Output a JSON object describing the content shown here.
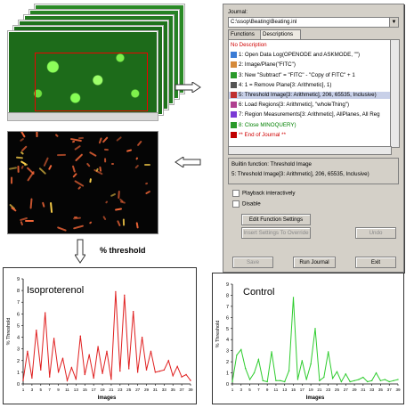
{
  "threshold_caption": "% threshold",
  "journal": {
    "label": "Journal:",
    "path": "C:\\ssop\\Beating\\Beating.inl",
    "tabs": [
      "Functions",
      "Descriptions"
    ],
    "items": [
      {
        "text": "No Description",
        "color": "#d00000",
        "icon": "none"
      },
      {
        "text": "1: Open Data Log(OPENODE and ASKMODE, \"\")",
        "color": "#000000",
        "icon": "log-icon"
      },
      {
        "text": "2: Image/Plane(\"FITC\")",
        "color": "#000000",
        "icon": "image-icon"
      },
      {
        "text": "3: New \"Subtract\" = \"FITC\" - \"Copy of FITC\" + 1",
        "color": "#000000",
        "icon": "subtract-icon"
      },
      {
        "text": "4: 1 = Remove Plane[3: Arithmetic], 1)",
        "color": "#000000",
        "icon": "remove-icon"
      },
      {
        "text": "5: Threshold Image[3: Arithmetic], 206, 65535, Inclusive)",
        "color": "#000000",
        "icon": "threshold-icon"
      },
      {
        "text": "6: Load Regions[3: Arithmetic], \"wholeThing\")",
        "color": "#000000",
        "icon": "regions-icon"
      },
      {
        "text": "7: Region Measurements[3: Arithmetic], AllPlanes, All Reg",
        "color": "#000000",
        "icon": "measure-icon"
      },
      {
        "text": "8: Close MINOQUERY)",
        "color": "#008000",
        "icon": "close-icon"
      },
      {
        "text": "** End of Journal **",
        "color": "#d00000",
        "icon": "end-icon"
      }
    ],
    "selected_index": 5,
    "builtin_label": "Builtin function: Threshold Image",
    "builtin_value": "5: Threshold Image[3: Arithmetic], 206, 65535, Inclusive)",
    "checkboxes": [
      "Playback interactively",
      "Disable"
    ],
    "edit_button": "Edit Function Settings",
    "insert_button": "Insert Settings To Override",
    "undo_button": "Undo",
    "save_button": "Save",
    "run_button": "Run Journal",
    "exit_button": "Exit"
  },
  "colors": {
    "iso": "#e02020",
    "control": "#2ecc2e",
    "frame": "#1d6b1a"
  },
  "chart_data": [
    {
      "type": "line",
      "title": "Isoproterenol",
      "xlabel": "Images",
      "ylabel": "% Threshold",
      "ylim": [
        0,
        9
      ],
      "yticks": [
        0,
        1,
        2,
        3,
        4,
        5,
        6,
        7,
        8,
        9
      ],
      "xticks": [
        1,
        3,
        5,
        7,
        9,
        11,
        13,
        15,
        17,
        19,
        21,
        23,
        25,
        27,
        29,
        31,
        33,
        35,
        37,
        39
      ],
      "x": [
        1,
        2,
        3,
        4,
        5,
        6,
        7,
        8,
        9,
        10,
        11,
        12,
        13,
        14,
        15,
        16,
        17,
        18,
        19,
        20,
        21,
        22,
        23,
        24,
        25,
        26,
        27,
        28,
        29,
        30,
        31,
        32,
        33,
        34,
        35,
        36,
        37,
        38,
        39
      ],
      "series": [
        {
          "name": "Isoproterenol",
          "color": "#e02020",
          "values": [
            0.3,
            2.8,
            0.5,
            4.6,
            1.2,
            6.1,
            0.6,
            3.9,
            1.0,
            2.2,
            0.3,
            1.4,
            0.4,
            4.1,
            0.8,
            2.5,
            0.5,
            3.2,
            0.9,
            2.8,
            0.4,
            7.9,
            1.1,
            7.6,
            1.3,
            6.2,
            1.0,
            4.0,
            1.2,
            2.8,
            1.0,
            1.1,
            1.2,
            2.0,
            0.7,
            1.5,
            0.6,
            0.8,
            0.3
          ]
        }
      ],
      "grid": false
    },
    {
      "type": "line",
      "title": "Control",
      "xlabel": "Images",
      "ylabel": "% Threshold",
      "ylim": [
        0,
        9
      ],
      "yticks": [
        0,
        1,
        2,
        3,
        4,
        5,
        6,
        7,
        8,
        9
      ],
      "xticks": [
        1,
        3,
        5,
        7,
        9,
        11,
        13,
        15,
        17,
        19,
        21,
        23,
        25,
        27,
        29,
        31,
        33,
        35,
        37,
        39
      ],
      "x": [
        1,
        2,
        3,
        4,
        5,
        6,
        7,
        8,
        9,
        10,
        11,
        12,
        13,
        14,
        15,
        16,
        17,
        18,
        19,
        20,
        21,
        22,
        23,
        24,
        25,
        26,
        27,
        28,
        29,
        30,
        31,
        32,
        33,
        34,
        35,
        36,
        37,
        38,
        39
      ],
      "series": [
        {
          "name": "Control",
          "color": "#2ecc2e",
          "values": [
            0.2,
            2.6,
            3.1,
            1.4,
            0.4,
            1.0,
            2.2,
            0.3,
            0.2,
            2.9,
            0.3,
            0.3,
            0.2,
            1.2,
            7.8,
            0.4,
            2.1,
            0.4,
            1.8,
            5.0,
            0.3,
            0.6,
            2.9,
            0.5,
            1.1,
            0.2,
            0.9,
            0.2,
            0.3,
            0.4,
            0.6,
            0.2,
            0.3,
            1.0,
            0.3,
            0.4,
            0.2,
            0.3,
            0.4
          ]
        }
      ],
      "grid": false
    }
  ]
}
